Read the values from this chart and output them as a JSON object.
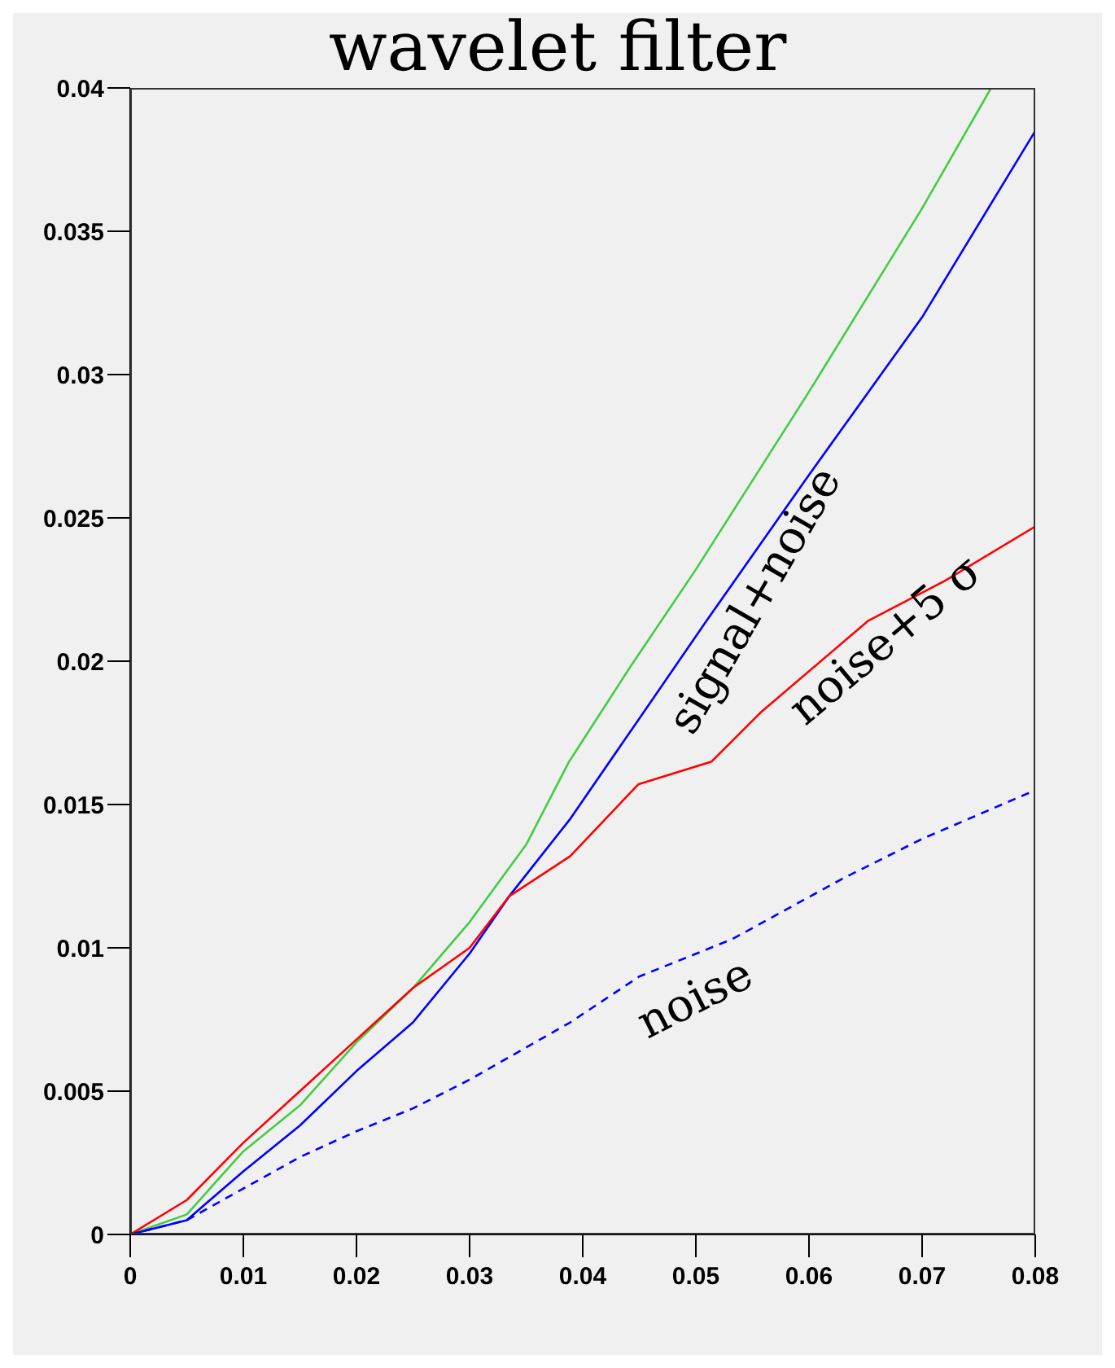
{
  "chart_data": {
    "type": "line",
    "title": "wavelet filter",
    "xlim": [
      0,
      0.08
    ],
    "ylim": [
      0,
      0.04
    ],
    "xticks": [
      0,
      0.01,
      0.02,
      0.03,
      0.04,
      0.05,
      0.06,
      0.07,
      0.08
    ],
    "yticks": [
      0,
      0.005,
      0.01,
      0.015,
      0.02,
      0.025,
      0.03,
      0.035,
      0.04
    ],
    "grid": false,
    "legend": false,
    "marker": "none",
    "series": [
      {
        "color": "#44cc44",
        "x": [
          0,
          0.005,
          0.01,
          0.015,
          0.02,
          0.025,
          0.03,
          0.035,
          0.0388,
          0.0442,
          0.05,
          0.06,
          0.07,
          0.0761
        ],
        "values": [
          0,
          0.0007,
          0.0029,
          0.0045,
          0.0067,
          0.0086,
          0.0109,
          0.0136,
          0.0165,
          0.0198,
          0.0232,
          0.0294,
          0.0358,
          0.04
        ]
      },
      {
        "name": "signal+noise",
        "color": "#0000ff",
        "x": [
          0,
          0.005,
          0.01,
          0.015,
          0.02,
          0.025,
          0.03,
          0.0335,
          0.0389,
          0.045,
          0.0511,
          0.06,
          0.07,
          0.08
        ],
        "values": [
          0,
          0.0005,
          0.0022,
          0.0038,
          0.0057,
          0.0074,
          0.0098,
          0.0118,
          0.0145,
          0.018,
          0.0215,
          0.0265,
          0.032,
          0.0385
        ]
      },
      {
        "name": "noise+5 σ",
        "color": "#ff0000",
        "x": [
          0,
          0.005,
          0.01,
          0.015,
          0.02,
          0.025,
          0.03,
          0.0335,
          0.0389,
          0.0449,
          0.0514,
          0.0557,
          0.0652,
          0.072,
          0.08
        ],
        "values": [
          0,
          0.0012,
          0.0032,
          0.005,
          0.0068,
          0.0086,
          0.01,
          0.0118,
          0.0132,
          0.0157,
          0.0165,
          0.0182,
          0.0214,
          0.0228,
          0.0247
        ]
      },
      {
        "name": "noise",
        "color": "#0000ff",
        "line_style": "dashed",
        "x": [
          0,
          0.005,
          0.01,
          0.015,
          0.02,
          0.025,
          0.03,
          0.0389,
          0.045,
          0.0532,
          0.0629,
          0.07,
          0.08
        ],
        "values": [
          0,
          0.0005,
          0.0016,
          0.0027,
          0.0036,
          0.0044,
          0.0054,
          0.0074,
          0.009,
          0.0103,
          0.0124,
          0.0138,
          0.0155
        ]
      }
    ]
  }
}
